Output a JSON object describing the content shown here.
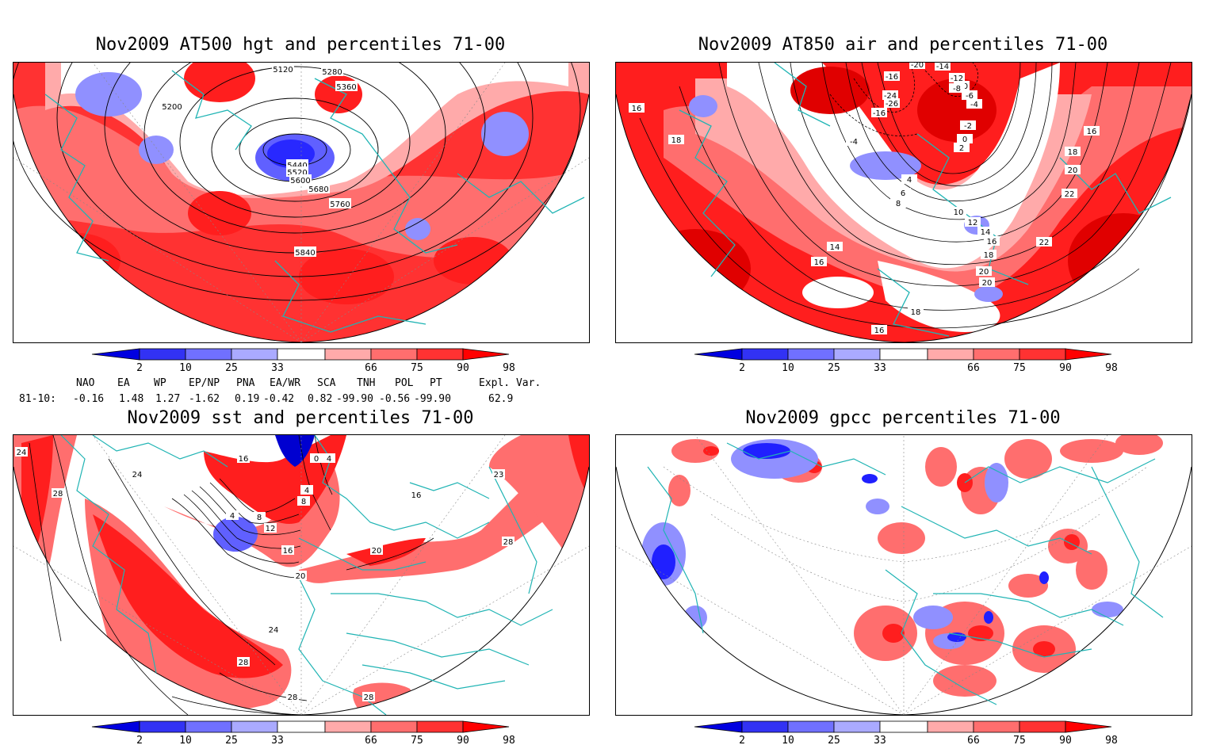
{
  "panels": [
    {
      "id": "hgt",
      "title": "Nov2009 AT500 hgt and percentiles 71-00",
      "contour_labels": [
        "5120",
        "5280",
        "5360",
        "5200",
        "5440",
        "5520",
        "5600",
        "5680",
        "5760",
        "5840"
      ]
    },
    {
      "id": "air",
      "title": "Nov2009 AT850 air and percentiles 71-00",
      "contour_labels": [
        "-20",
        "-14",
        "-16",
        "-12",
        "-10",
        "-24",
        "-26",
        "-16",
        "-8",
        "-6",
        "-4",
        "-4",
        "-2",
        "0",
        "2",
        "16",
        "18",
        "16",
        "18",
        "20",
        "22",
        "4",
        "6",
        "8",
        "10",
        "12",
        "14",
        "16",
        "18",
        "20",
        "20",
        "22",
        "14",
        "16",
        "18",
        "16"
      ]
    },
    {
      "id": "sst",
      "title": "Nov2009 sst and percentiles 71-00",
      "contour_labels": [
        "24",
        "28",
        "24",
        "0",
        "4",
        "4",
        "8",
        "4",
        "12",
        "8",
        "16",
        "20",
        "20",
        "24",
        "28",
        "28",
        "23",
        "28",
        "28",
        "16",
        "16"
      ]
    },
    {
      "id": "gpcc",
      "title": "Nov2009 gpcc percentiles 71-00",
      "contour_labels": []
    }
  ],
  "colorbar": {
    "ticks": [
      "2",
      "10",
      "25",
      "33",
      "66",
      "75",
      "90",
      "98"
    ],
    "colors": [
      "#0000e0",
      "#3232f4",
      "#7070ff",
      "#aaaaff",
      "#ffffff",
      "#ffaaaa",
      "#ff6e6e",
      "#ff3232",
      "#ff0000"
    ]
  },
  "teleconnections": {
    "headers": [
      "NAO",
      "EA",
      "WP",
      "EP/NP",
      "PNA",
      "EA/WR",
      "SCA",
      "TNH",
      "POL",
      "PT",
      "Expl. Var."
    ],
    "row_label": "81-10:",
    "values": [
      "-0.16",
      "1.48",
      "1.27",
      "-1.62",
      "0.19",
      "-0.42",
      "0.82",
      "-99.90",
      "-0.56",
      "-99.90",
      "62.9"
    ]
  },
  "colors": {
    "coast": "#20b4b4",
    "strong_red": "#ff1e1e",
    "mid_red": "#ff6e6e",
    "light_red": "#ffaaaa",
    "strong_blue": "#2020ff",
    "light_blue": "#9090ff"
  }
}
